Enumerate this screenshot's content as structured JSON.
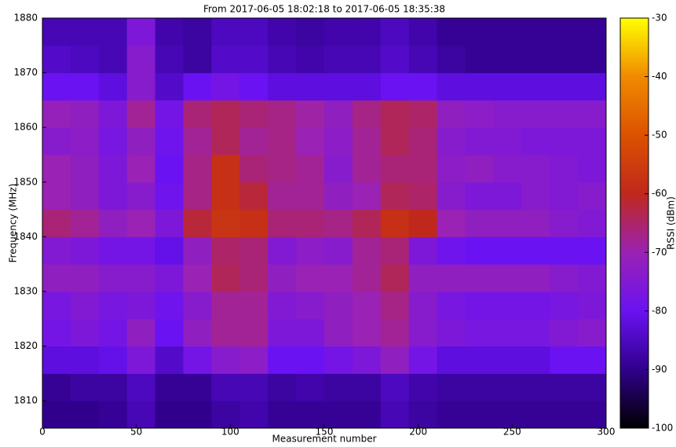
{
  "chart_data": {
    "type": "heatmap",
    "title": "From 2017-06-05 18:02:18 to 2017-06-05 18:35:38",
    "xlabel": "Measurement number",
    "ylabel": "Frequency (MHz)",
    "colorbar_label": "RSSI (dBm)",
    "xlim": [
      0,
      300
    ],
    "xticks": [
      0,
      50,
      100,
      150,
      200,
      250,
      300
    ],
    "ylim": [
      1805,
      1880
    ],
    "yticks": [
      1810,
      1820,
      1830,
      1840,
      1850,
      1860,
      1870,
      1880
    ],
    "zlim": [
      -100,
      -30
    ],
    "zticks": [
      -100,
      -90,
      -80,
      -70,
      -60,
      -50,
      -40,
      -30
    ],
    "colors": [
      "#000000",
      "#30008c",
      "#6a12f2",
      "#9a22b4",
      "#c0281c",
      "#dc5200",
      "#f08a00",
      "#ffff00"
    ],
    "x": [
      0,
      15,
      30,
      45,
      60,
      75,
      90,
      105,
      120,
      135,
      150,
      165,
      180,
      195,
      210,
      225,
      240,
      255,
      270,
      285,
      300
    ],
    "y": [
      1805,
      1810,
      1815,
      1820,
      1825,
      1830,
      1835,
      1840,
      1845,
      1850,
      1855,
      1860,
      1865,
      1870,
      1875,
      1880
    ],
    "values": [
      [
        -90,
        -90,
        -89,
        -86,
        -90,
        -90,
        -88,
        -87,
        -89,
        -89,
        -89,
        -89,
        -86,
        -88,
        -89,
        -89,
        -89,
        -89,
        -89,
        -89
      ],
      [
        -89,
        -88,
        -88,
        -85,
        -89,
        -89,
        -86,
        -86,
        -88,
        -87,
        -88,
        -88,
        -85,
        -87,
        -88,
        -88,
        -88,
        -88,
        -88,
        -88
      ],
      [
        -82,
        -82,
        -81,
        -76,
        -84,
        -78,
        -74,
        -73,
        -80,
        -80,
        -78,
        -76,
        -72,
        -78,
        -82,
        -82,
        -82,
        -82,
        -80,
        -80
      ],
      [
        -78,
        -76,
        -78,
        -72,
        -80,
        -72,
        -68,
        -68,
        -76,
        -76,
        -72,
        -70,
        -68,
        -74,
        -76,
        -77,
        -77,
        -77,
        -75,
        -74
      ],
      [
        -77,
        -75,
        -77,
        -76,
        -79,
        -74,
        -68,
        -68,
        -75,
        -74,
        -72,
        -70,
        -67,
        -74,
        -77,
        -78,
        -78,
        -78,
        -77,
        -76
      ],
      [
        -72,
        -72,
        -74,
        -74,
        -76,
        -70,
        -64,
        -66,
        -72,
        -70,
        -70,
        -68,
        -64,
        -72,
        -72,
        -72,
        -72,
        -72,
        -74,
        -75
      ],
      [
        -75,
        -76,
        -78,
        -78,
        -81,
        -72,
        -65,
        -66,
        -75,
        -73,
        -74,
        -68,
        -66,
        -76,
        -79,
        -80,
        -80,
        -80,
        -80,
        -80
      ],
      [
        -66,
        -68,
        -72,
        -70,
        -76,
        -62,
        -57,
        -58,
        -66,
        -66,
        -67,
        -64,
        -58,
        -60,
        -70,
        -72,
        -72,
        -72,
        -74,
        -75
      ],
      [
        -70,
        -72,
        -76,
        -74,
        -79,
        -67,
        -58,
        -62,
        -68,
        -68,
        -72,
        -70,
        -64,
        -65,
        -74,
        -76,
        -76,
        -74,
        -75,
        -74
      ],
      [
        -70,
        -72,
        -76,
        -70,
        -80,
        -67,
        -58,
        -66,
        -67,
        -68,
        -74,
        -68,
        -66,
        -66,
        -73,
        -72,
        -74,
        -74,
        -75,
        -76
      ],
      [
        -74,
        -73,
        -77,
        -72,
        -79,
        -68,
        -64,
        -68,
        -67,
        -70,
        -73,
        -68,
        -64,
        -66,
        -74,
        -75,
        -75,
        -76,
        -76,
        -76
      ],
      [
        -71,
        -72,
        -76,
        -68,
        -78,
        -66,
        -64,
        -66,
        -67,
        -69,
        -72,
        -67,
        -64,
        -65,
        -72,
        -73,
        -74,
        -74,
        -74,
        -74
      ],
      [
        -80,
        -80,
        -82,
        -74,
        -84,
        -80,
        -78,
        -80,
        -82,
        -82,
        -82,
        -82,
        -80,
        -80,
        -82,
        -82,
        -82,
        -82,
        -82,
        -82
      ],
      [
        -84,
        -85,
        -86,
        -74,
        -86,
        -88,
        -84,
        -84,
        -86,
        -87,
        -86,
        -86,
        -84,
        -86,
        -88,
        -89,
        -89,
        -89,
        -89,
        -89
      ],
      [
        -86,
        -86,
        -86,
        -76,
        -87,
        -88,
        -85,
        -85,
        -87,
        -88,
        -87,
        -87,
        -85,
        -87,
        -89,
        -89,
        -89,
        -89,
        -89,
        -89
      ]
    ]
  }
}
